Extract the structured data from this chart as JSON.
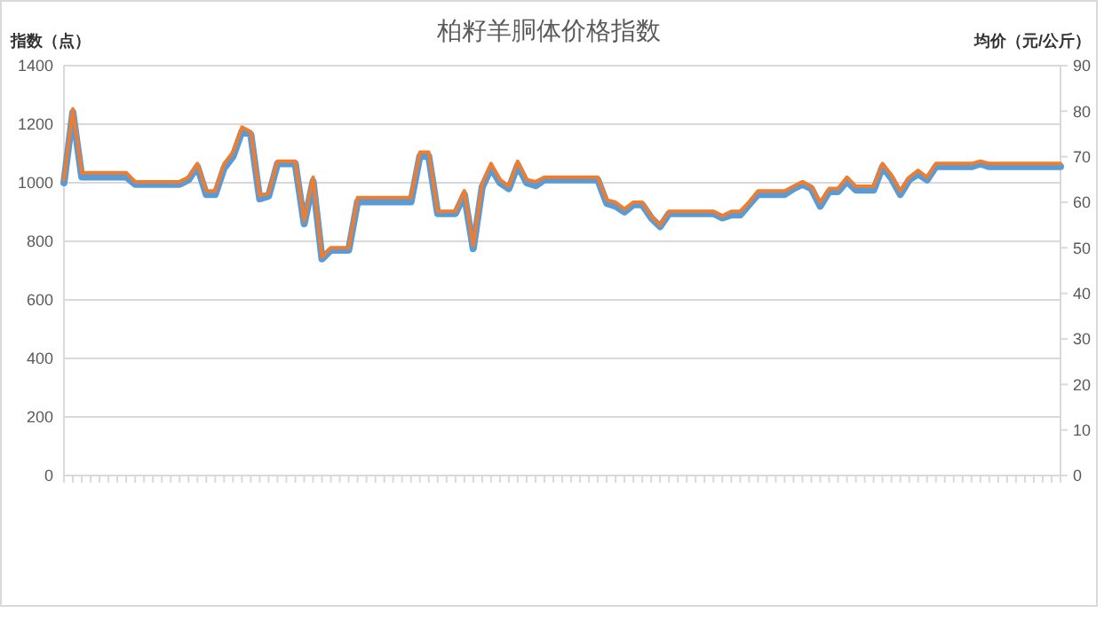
{
  "chart_data": {
    "type": "line",
    "title": "柏籽羊胴体价格指数",
    "ylabel": "指数（点）",
    "y2label": "均价（元/公斤）",
    "categories": [
      null,
      null,
      null,
      null,
      null,
      null,
      null,
      null,
      null,
      null,
      null,
      null,
      null,
      null,
      null,
      null,
      null,
      null,
      null,
      null,
      null,
      null,
      null,
      null,
      null,
      null,
      null,
      null,
      null,
      null,
      null,
      null,
      null,
      null,
      null,
      null,
      null,
      null,
      null,
      null,
      null,
      null,
      null,
      null,
      null,
      null,
      null,
      null,
      null,
      null,
      null,
      null,
      null,
      null,
      null,
      null,
      null,
      null,
      null,
      null,
      null,
      null,
      null,
      null,
      null,
      null,
      null,
      null,
      null,
      null,
      null,
      null,
      null,
      null,
      null,
      null,
      null,
      null,
      null,
      null,
      null,
      null,
      null,
      null,
      null,
      null,
      null,
      null,
      null,
      null,
      null,
      null,
      null,
      null,
      null,
      null,
      null,
      null,
      null,
      null,
      null,
      null,
      null,
      null,
      null,
      null,
      null,
      null,
      null,
      null,
      null,
      null,
      null
    ],
    "series": [
      {
        "color": "#5b9bd5",
        "values": [
          1000,
          1240,
          1020,
          1020,
          1020,
          1020,
          1020,
          1020,
          995,
          995,
          995,
          995,
          995,
          995,
          1010,
          1055,
          960,
          960,
          1050,
          1090,
          1175,
          1165,
          945,
          955,
          1065,
          1065,
          1065,
          860,
          1005,
          740,
          770,
          770,
          770,
          935,
          935,
          935,
          935,
          935,
          935,
          935,
          1090,
          1090,
          895,
          895,
          895,
          960,
          775,
          985,
          1050,
          1000,
          980,
          1060,
          1000,
          990,
          1010,
          1010,
          1010,
          1010,
          1010,
          1010,
          1010,
          930,
          920,
          900,
          925,
          925,
          880,
          850,
          895,
          895,
          895,
          895,
          895,
          895,
          880,
          890,
          890,
          925,
          960,
          960,
          960,
          960,
          980,
          995,
          980,
          920,
          970,
          970,
          1005,
          975,
          975,
          975,
          1055,
          1015,
          960,
          1010,
          1030,
          1010,
          1055,
          1055,
          1055,
          1055,
          1055,
          1065,
          1055,
          1055,
          1055,
          1055,
          1055,
          1055,
          1055,
          1055,
          1055
        ]
      },
      {
        "color": "#ed7d31",
        "axis": "y2",
        "values": [
          65,
          80.5,
          66.5,
          66.5,
          66.5,
          66.5,
          66.5,
          66.5,
          64.5,
          64.5,
          64.5,
          64.5,
          64.5,
          64.5,
          65.5,
          68.5,
          62.5,
          62.5,
          68.5,
          71,
          76.5,
          75.5,
          61.5,
          62,
          69,
          69,
          69,
          56,
          65.5,
          48,
          50,
          50,
          50,
          61,
          61,
          61,
          61,
          61,
          61,
          61,
          71,
          71,
          58,
          58,
          58,
          62.5,
          50.5,
          64,
          68.5,
          65,
          63.5,
          69,
          65,
          64.5,
          65.5,
          65.5,
          65.5,
          65.5,
          65.5,
          65.5,
          65.5,
          60.5,
          60,
          58.5,
          60,
          60,
          57,
          55,
          58,
          58,
          58,
          58,
          58,
          58,
          57,
          58,
          58,
          60,
          62.5,
          62.5,
          62.5,
          62.5,
          63.5,
          64.5,
          63.5,
          60,
          63,
          63,
          65.5,
          63.5,
          63.5,
          63.5,
          68.5,
          66,
          62.5,
          65.5,
          67,
          65.5,
          68.5,
          68.5,
          68.5,
          68.5,
          68.5,
          69,
          68.5,
          68.5,
          68.5,
          68.5,
          68.5,
          68.5,
          68.5,
          68.5,
          68.5
        ]
      }
    ],
    "ylim": [
      0,
      1400
    ],
    "yticks": [
      0,
      200,
      400,
      600,
      800,
      1000,
      1200,
      1400
    ],
    "y2lim": [
      0,
      90
    ],
    "y2ticks": [
      0,
      10,
      20,
      30,
      40,
      50,
      60,
      70,
      80,
      90
    ],
    "grid": "y"
  }
}
